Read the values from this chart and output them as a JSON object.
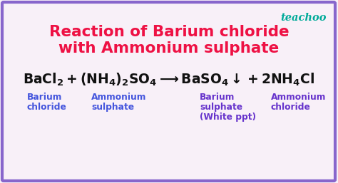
{
  "bg_color": "#f8f0f8",
  "border_color": "#8866cc",
  "title_line1": "Reaction of Barium chloride",
  "title_line2": "with Ammonium sulphate",
  "title_color": "#ee1144",
  "teachoo_color": "#00aa99",
  "teachoo_text": "teachoo",
  "equation_color": "#111111",
  "label_color_left": "#4455dd",
  "label_color_right": "#6633cc",
  "label1_line1": "Barium",
  "label1_line2": "chloride",
  "label2_line1": "Ammonium",
  "label2_line2": "sulphate",
  "label3_line1": "Barium",
  "label3_line2": "sulphate",
  "label3_line3": "(White ppt)",
  "label4_line1": "Ammonium",
  "label4_line2": "chloride",
  "fig_width": 4.74,
  "fig_height": 2.57,
  "dpi": 100
}
